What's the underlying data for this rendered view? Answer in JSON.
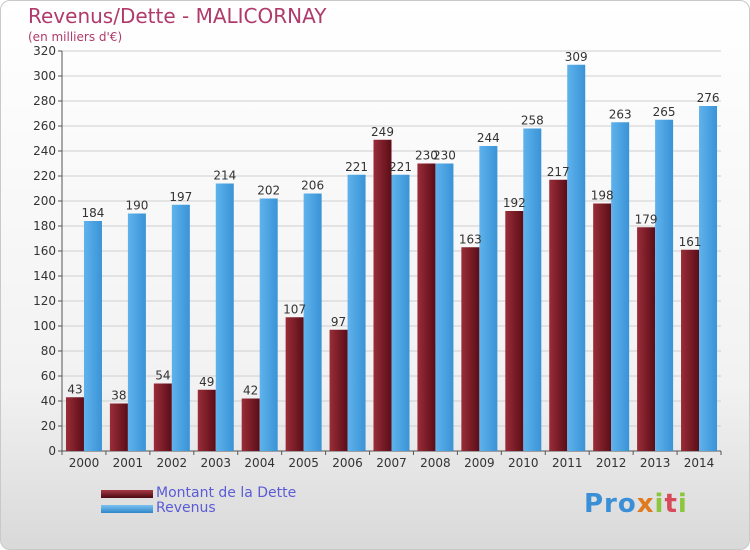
{
  "header": {
    "title": "Revenus/Dette - MALICORNAY",
    "subtitle": "(en milliers d'€)"
  },
  "legend": {
    "debt_label": "Montant de la Dette",
    "revenue_label": "Revenus"
  },
  "logo": {
    "text": "Proxiti"
  },
  "colors": {
    "debt": "#7a1f28",
    "revenue": "#4aa3e3",
    "axis_text": "#333333",
    "grid": "#cfcfcf"
  },
  "chart_data": {
    "type": "bar",
    "title": "Revenus/Dette - MALICORNAY",
    "subtitle": "(en milliers d'€)",
    "categories": [
      "2000",
      "2001",
      "2002",
      "2003",
      "2004",
      "2005",
      "2006",
      "2007",
      "2008",
      "2009",
      "2010",
      "2011",
      "2012",
      "2013",
      "2014"
    ],
    "series": [
      {
        "name": "Montant de la Dette",
        "values": [
          43,
          38,
          54,
          49,
          42,
          107,
          97,
          249,
          230,
          163,
          192,
          217,
          198,
          179,
          161
        ]
      },
      {
        "name": "Revenus",
        "values": [
          184,
          190,
          197,
          214,
          202,
          206,
          221,
          221,
          230,
          244,
          258,
          309,
          263,
          265,
          276
        ]
      }
    ],
    "ylim": [
      0,
      320
    ],
    "yticks": [
      0,
      20,
      40,
      60,
      80,
      100,
      120,
      140,
      160,
      180,
      200,
      220,
      240,
      260,
      280,
      300,
      320
    ],
    "grid": true,
    "legend_position": "bottom-left"
  }
}
